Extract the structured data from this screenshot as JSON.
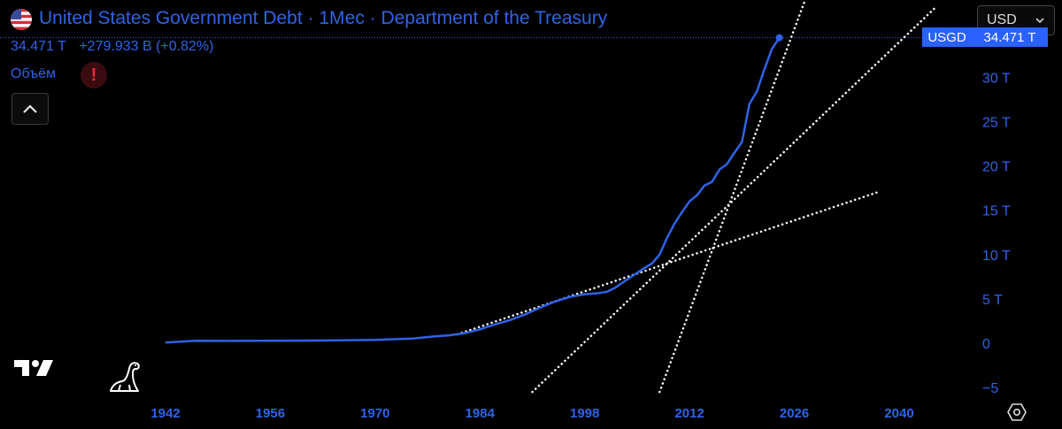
{
  "header": {
    "title": "United States Government Debt · 1Мес · Department of the Treasury",
    "last_value": "34.471 T",
    "change": "+279.933 B (+0.82%)",
    "volume_label": "Объём",
    "alert_symbol": "!"
  },
  "toolbar": {
    "currency_value": "USD",
    "symbol_badge": "USGD",
    "price_badge": "34.471 T"
  },
  "icons": {
    "flag": "us-flag-icon",
    "alert": "alert-icon",
    "collapse": "chevron-up-icon",
    "logo": "tradingview-logo",
    "dino": "dinosaur-icon",
    "settings": "settings-icon"
  },
  "colors": {
    "background": "#000000",
    "series": "#2f63e6",
    "accent": "#2962ff",
    "trendline": "#ffffff",
    "alert": "#e5303d"
  },
  "chart_data": {
    "type": "line",
    "title": "United States Government Debt · 1Мес · Department of the Treasury",
    "xlabel": "",
    "ylabel": "",
    "xlim": [
      1942,
      2048
    ],
    "ylim": [
      -6.5,
      36.5
    ],
    "x_ticks": [
      1942,
      1956,
      1970,
      1984,
      1998,
      2012,
      2026,
      2040
    ],
    "y_ticks": [
      -5,
      0,
      5,
      10,
      15,
      20,
      25,
      30
    ],
    "y_tick_labels": [
      "−5",
      "0",
      "5 T",
      "10 T",
      "15 T",
      "20 T",
      "25 T",
      "30 T"
    ],
    "grid": false,
    "legend": "none",
    "series": [
      {
        "values": [
          [
            1942,
            0.07
          ],
          [
            1946,
            0.27
          ],
          [
            1950,
            0.26
          ],
          [
            1955,
            0.27
          ],
          [
            1960,
            0.29
          ],
          [
            1965,
            0.32
          ],
          [
            1970,
            0.37
          ],
          [
            1975,
            0.53
          ],
          [
            1978,
            0.77
          ],
          [
            1980,
            0.9
          ],
          [
            1982,
            1.14
          ],
          [
            1984,
            1.57
          ],
          [
            1986,
            2.12
          ],
          [
            1988,
            2.6
          ],
          [
            1990,
            3.23
          ],
          [
            1992,
            4.0
          ],
          [
            1994,
            4.69
          ],
          [
            1996,
            5.22
          ],
          [
            1998,
            5.53
          ],
          [
            2000,
            5.67
          ],
          [
            2001,
            5.81
          ],
          [
            2002,
            6.23
          ],
          [
            2004,
            7.38
          ],
          [
            2006,
            8.5
          ],
          [
            2007,
            9.0
          ],
          [
            2008,
            10.0
          ],
          [
            2009,
            11.9
          ],
          [
            2010,
            13.5
          ],
          [
            2011,
            14.8
          ],
          [
            2012,
            16.0
          ],
          [
            2013,
            16.7
          ],
          [
            2014,
            17.8
          ],
          [
            2015,
            18.2
          ],
          [
            2016,
            19.6
          ],
          [
            2017,
            20.2
          ],
          [
            2018,
            21.5
          ],
          [
            2019,
            22.7
          ],
          [
            2020,
            27.0
          ],
          [
            2021,
            28.4
          ],
          [
            2022,
            30.9
          ],
          [
            2023,
            33.2
          ],
          [
            2024,
            34.47
          ]
        ]
      }
    ],
    "trendlines": [
      {
        "from": [
          1981,
          1.0
        ],
        "to": [
          2037,
          17.0
        ]
      },
      {
        "from": [
          1991,
          -5.5
        ],
        "to": [
          2045,
          38.0
        ]
      },
      {
        "from": [
          2008,
          -5.5
        ],
        "to": [
          2028,
          40.0
        ]
      }
    ],
    "last_point": [
      2024,
      34.47
    ]
  }
}
